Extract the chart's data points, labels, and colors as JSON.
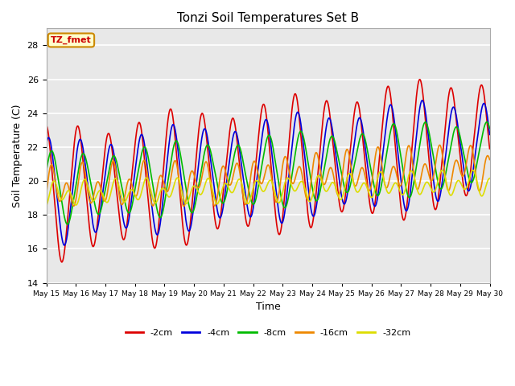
{
  "title": "Tonzi Soil Temperatures Set B",
  "xlabel": "Time",
  "ylabel": "Soil Temperature (C)",
  "ylim": [
    14,
    29
  ],
  "yticks": [
    14,
    16,
    18,
    20,
    22,
    24,
    26,
    28
  ],
  "plot_bg_color": "#e8e8e8",
  "fig_bg_color": "#ffffff",
  "grid_color": "#ffffff",
  "series": [
    {
      "label": "-2cm",
      "color": "#dd0000",
      "lw": 1.2
    },
    {
      "label": "-4cm",
      "color": "#0000dd",
      "lw": 1.2
    },
    {
      "label": "-8cm",
      "color": "#00bb00",
      "lw": 1.2
    },
    {
      "label": "-16cm",
      "color": "#ee8800",
      "lw": 1.2
    },
    {
      "label": "-32cm",
      "color": "#dddd00",
      "lw": 1.2
    }
  ],
  "annotation_text": "TZ_fmet",
  "annotation_box_color": "#ffffcc",
  "annotation_border_color": "#cc8800",
  "date_labels": [
    "May 15",
    "May 16",
    "May 17",
    "May 18",
    "May 19",
    "May 20",
    "May 21",
    "May 22",
    "May 23",
    "May 24",
    "May 25",
    "May 26",
    "May 27",
    "May 28",
    "May 29",
    "May 30"
  ]
}
